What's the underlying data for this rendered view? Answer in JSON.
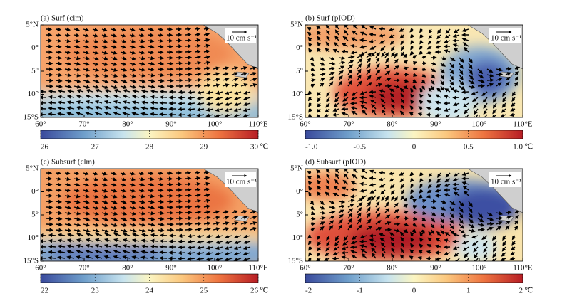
{
  "panels": [
    {
      "title": "(a) Surf (clm)",
      "lat_labels": [
        "5°N",
        "0°",
        "5°",
        "10°",
        "15°S"
      ],
      "lon_labels": [
        "60°",
        "70°",
        "80°",
        "90°",
        "100°",
        "110°E"
      ],
      "scale": "10 cm s⁻¹",
      "clim": [
        26,
        30
      ],
      "cticks": [
        26,
        27,
        28,
        29,
        30
      ],
      "unit": "℃"
    },
    {
      "title": "(b) Surf (pIOD)",
      "lat_labels": [
        "5°N",
        "0°",
        "5°",
        "10°",
        "15°S"
      ],
      "lon_labels": [
        "60°",
        "70°",
        "80°",
        "90°",
        "100°",
        "110°E"
      ],
      "scale": "10 cm s⁻¹",
      "clim": [
        -1,
        1
      ],
      "cticks": [
        {
          "value": -1,
          "label": "-1.0"
        },
        -0.5,
        0,
        0.5,
        {
          "value": 1,
          "label": "1.0"
        }
      ],
      "unit": "℃"
    },
    {
      "title": "(c) Subsurf (clm)",
      "lat_labels": [
        "5°N",
        "0°",
        "5°",
        "10°",
        "15°S"
      ],
      "lon_labels": [
        "60°",
        "70°",
        "80°",
        "90°",
        "100°",
        "110°E"
      ],
      "scale": "10 cm s⁻¹",
      "clim": [
        22,
        26
      ],
      "cticks": [
        22,
        23,
        24,
        25,
        26
      ],
      "unit": "℃"
    },
    {
      "title": "(d) Subsurf (pIOD)",
      "lat_labels": [
        "5°N",
        "0°",
        "5°",
        "10°",
        "15°S"
      ],
      "lon_labels": [
        "60°",
        "70°",
        "80°",
        "90°",
        "100°",
        "110°E"
      ],
      "scale": "10 cm s⁻¹",
      "clim": [
        -2,
        2
      ],
      "cticks": [
        -2,
        -1,
        0,
        1,
        2
      ],
      "unit": "℃"
    }
  ]
}
